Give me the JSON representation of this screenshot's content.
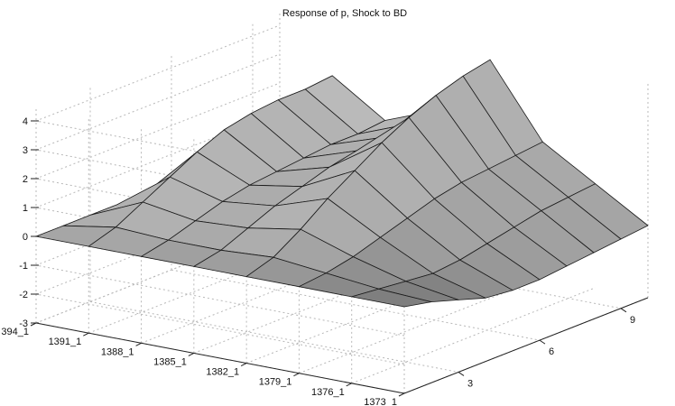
{
  "chart_data": {
    "type": "surface",
    "title": "Response of p, Shock to BD",
    "xlabel": "",
    "ylabel": "",
    "zlabel": "",
    "periods": [
      "394_1",
      "1391_1",
      "1388_1",
      "1385_1",
      "1382_1",
      "1379_1",
      "1376_1",
      "1373_1"
    ],
    "horizon_ticks": [
      3,
      6,
      9
    ],
    "horizon_range": [
      1,
      10
    ],
    "z_ticks": [
      -3,
      -2,
      -1,
      0,
      1,
      2,
      3,
      4
    ],
    "zlim": [
      -3,
      4.5
    ],
    "grid": true,
    "colors": {
      "surface": "#a0a0a0",
      "edges": "#1a1a1a",
      "grid": "#b8b8b8",
      "axes": "#222222"
    },
    "rows": [
      {
        "period": "394_1",
        "values": [
          0,
          0,
          0,
          0,
          0,
          0,
          0,
          0,
          0,
          0
        ]
      },
      {
        "period": "1391_1",
        "values": [
          0,
          0.3,
          0.8,
          1.3,
          1.8,
          2.2,
          2.4,
          2.5,
          2.5,
          2.6
        ]
      },
      {
        "period": "1388_1",
        "values": [
          0,
          0.2,
          0.5,
          0.8,
          1.0,
          1.1,
          1.2,
          1.3,
          1.3,
          1.4
        ]
      },
      {
        "period": "1385_1",
        "values": [
          0,
          0.2,
          0.6,
          1.0,
          1.3,
          1.6,
          1.8,
          1.9,
          2.0,
          2.1
        ]
      },
      {
        "period": "1382_1",
        "values": [
          0,
          0.3,
          0.9,
          1.6,
          2.2,
          2.8,
          3.3,
          3.7,
          4.0,
          4.2
        ]
      },
      {
        "period": "1379_1",
        "values": [
          0,
          0.1,
          0.3,
          0.6,
          0.9,
          1.2,
          1.4,
          1.5,
          1.6,
          1.7
        ]
      },
      {
        "period": "1376_1",
        "values": [
          0,
          -0.1,
          -0.2,
          -0.3,
          -0.2,
          0.0,
          0.2,
          0.4,
          0.5,
          0.6
        ]
      },
      {
        "period": "1373_1",
        "values": [
          0,
          -0.2,
          -0.5,
          -0.8,
          -0.9,
          -0.9,
          -0.8,
          -0.7,
          -0.6,
          -0.5
        ]
      }
    ]
  }
}
